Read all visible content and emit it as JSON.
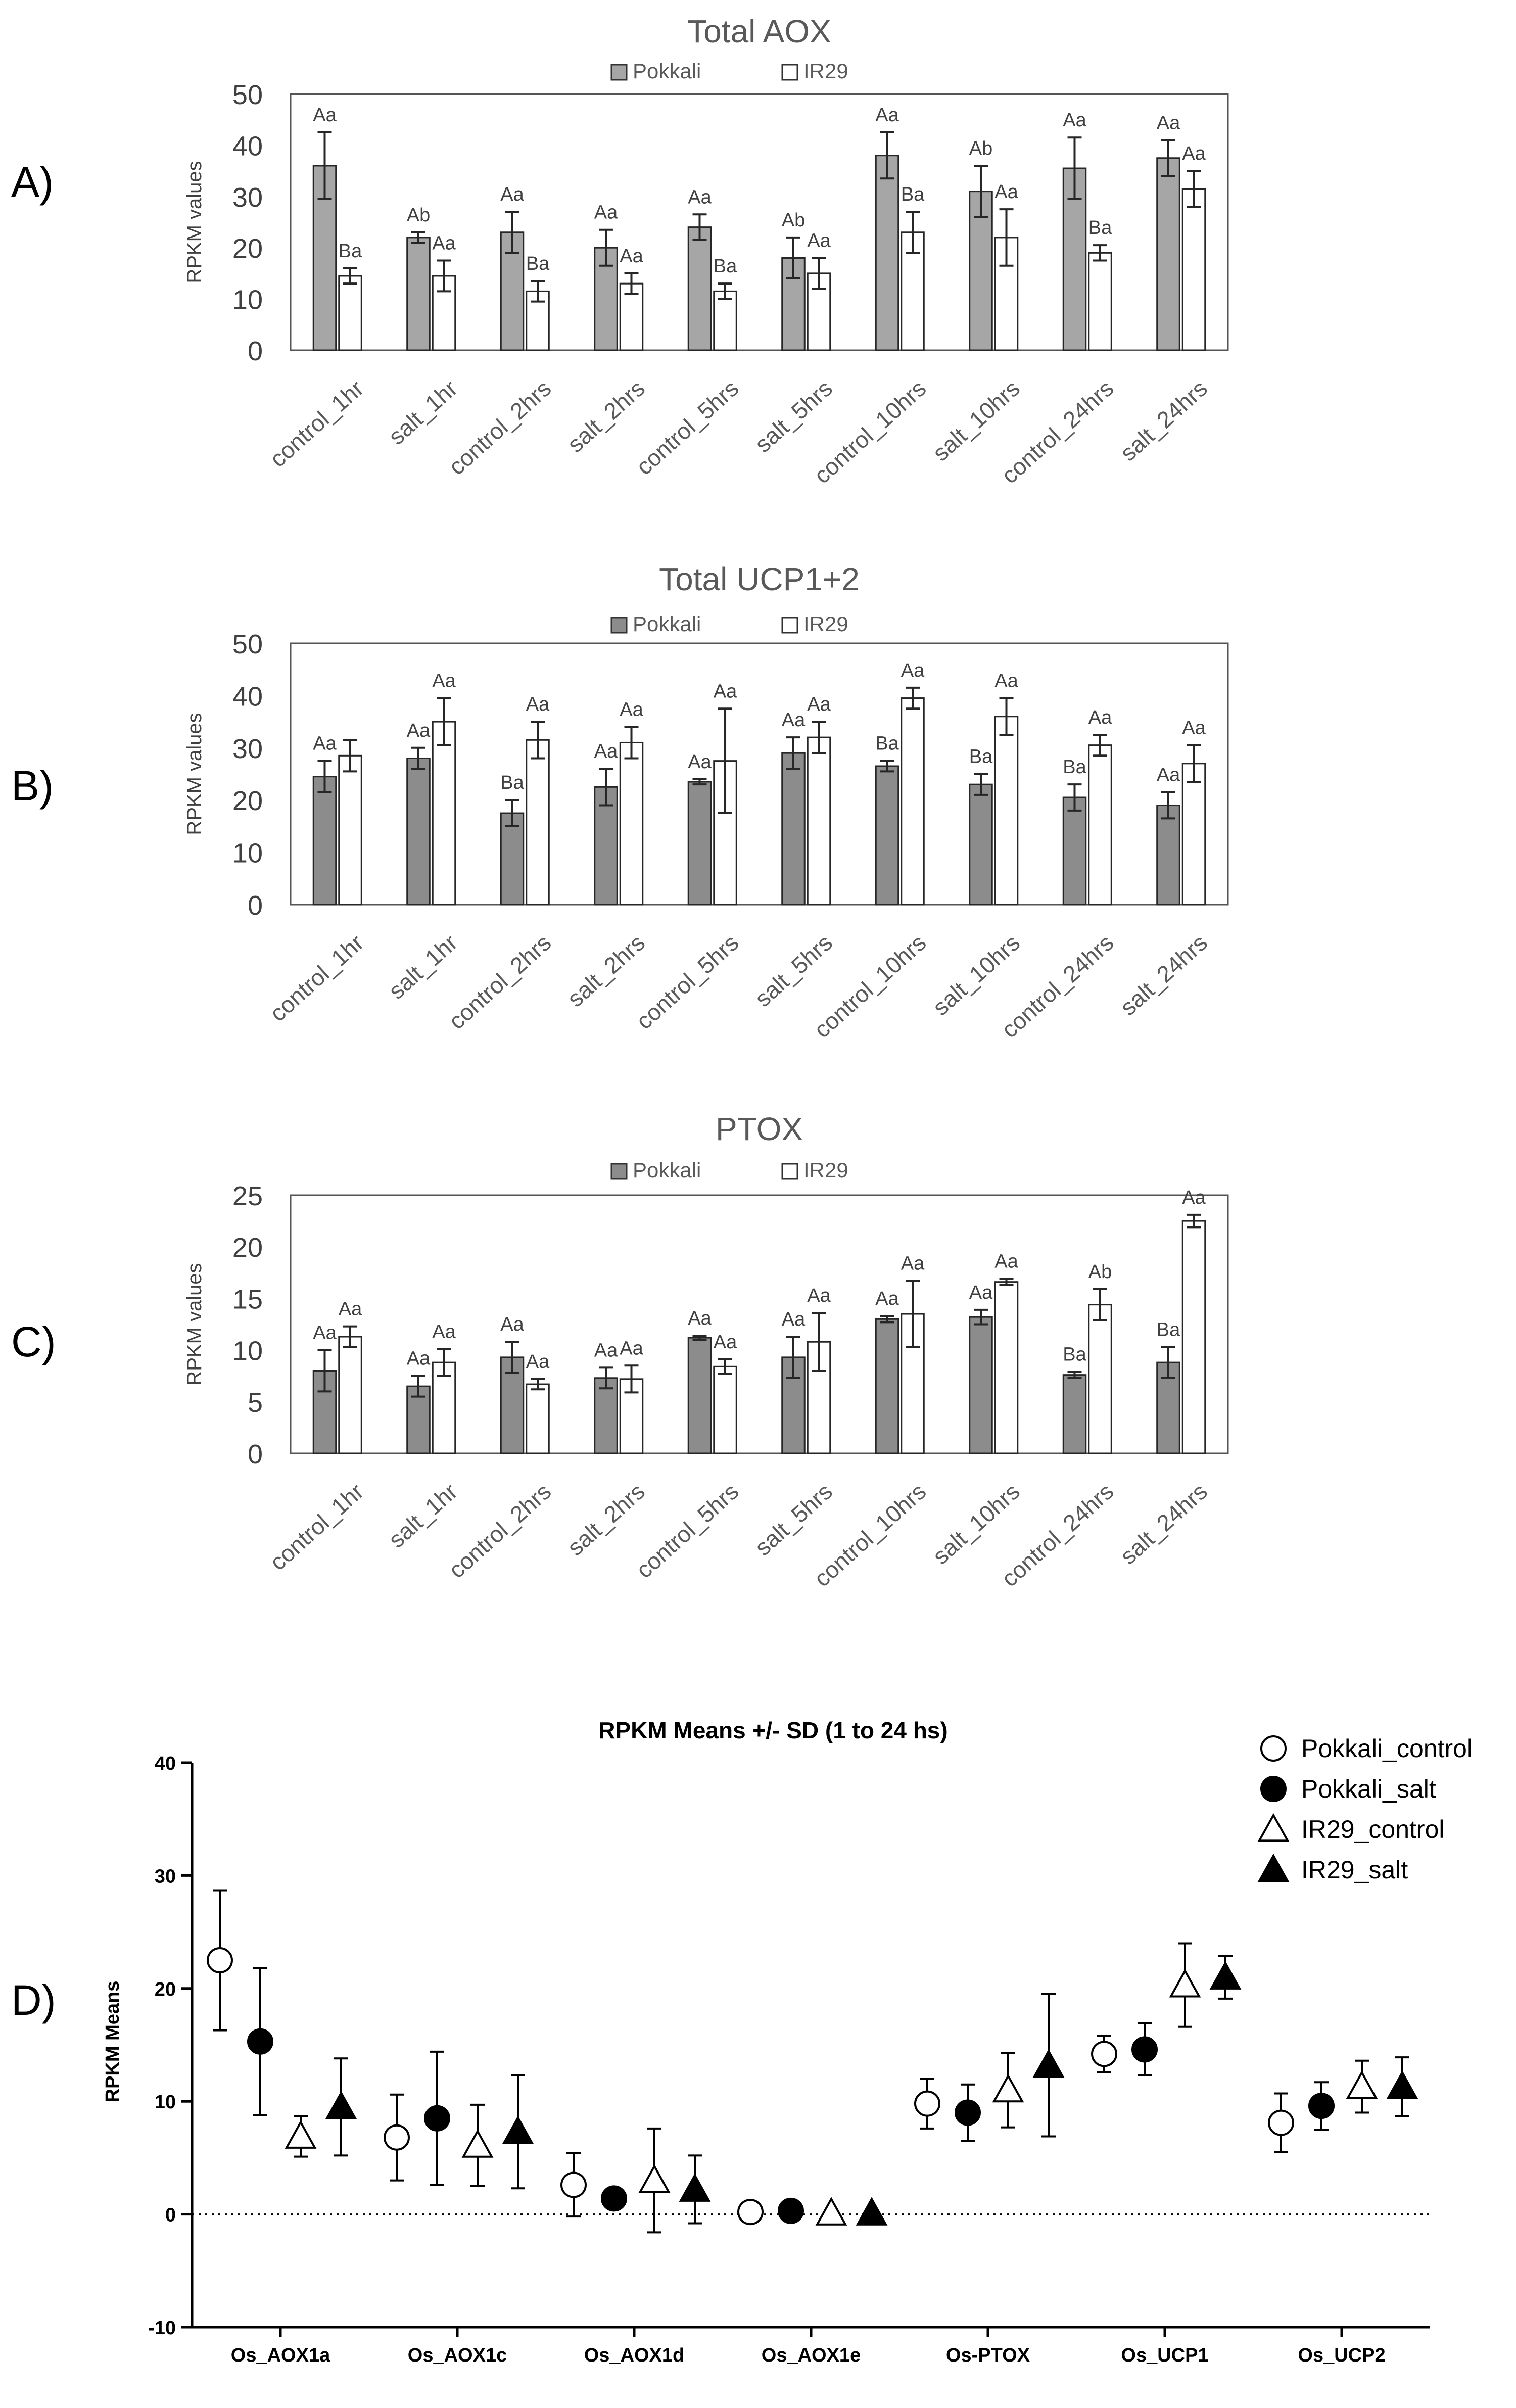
{
  "chart_data": [
    {
      "type": "bar",
      "panel": "A)",
      "title": "Total AOX",
      "ylabel": "RPKM values",
      "ylim": [
        0,
        50
      ],
      "yticks": [
        0,
        10,
        20,
        30,
        40,
        50
      ],
      "categories": [
        "control_1hr",
        "salt_1hr",
        "control_2hrs",
        "salt_2hrs",
        "control_5hrs",
        "salt_5hrs",
        "control_10hrs",
        "salt_10hrs",
        "control_24hrs",
        "salt_24hrs"
      ],
      "series": [
        {
          "name": "Pokkali",
          "color": "#a6a6a6",
          "values": [
            36,
            22,
            23,
            20,
            24,
            18,
            38,
            31,
            35.5,
            37.5
          ],
          "errors": [
            6.5,
            1,
            4,
            3.5,
            2.5,
            4,
            4.5,
            5,
            6,
            3.5
          ],
          "labels": [
            "Aa",
            "Ab",
            "Aa",
            "Aa",
            "Aa",
            "Ab",
            "Aa",
            "Ab",
            "Aa",
            "Aa"
          ]
        },
        {
          "name": "IR29",
          "color": "#ffffff",
          "values": [
            14.5,
            14.5,
            11.5,
            13,
            11.5,
            15,
            23,
            22,
            19,
            31.5
          ],
          "errors": [
            1.5,
            3,
            2,
            2,
            1.5,
            3,
            4,
            5.5,
            1.5,
            3.5
          ],
          "labels": [
            "Ba",
            "Aa",
            "Ba",
            "Aa",
            "Ba",
            "Aa",
            "Ba",
            "Aa",
            "Ba",
            "Aa"
          ]
        }
      ]
    },
    {
      "type": "bar",
      "panel": "B)",
      "title": "Total UCP1+2",
      "ylabel": "RPKM values",
      "ylim": [
        0,
        50
      ],
      "yticks": [
        0,
        10,
        20,
        30,
        40,
        50
      ],
      "categories": [
        "control_1hr",
        "salt_1hr",
        "control_2hrs",
        "salt_2hrs",
        "control_5hrs",
        "salt_5hrs",
        "control_10hrs",
        "salt_10hrs",
        "control_24hrs",
        "salt_24hrs"
      ],
      "series": [
        {
          "name": "Pokkali",
          "color": "#8c8c8c",
          "values": [
            24.5,
            28,
            17.5,
            22.5,
            23.5,
            29,
            26.5,
            23,
            20.5,
            19
          ],
          "errors": [
            3,
            2,
            2.5,
            3.5,
            0.5,
            3,
            1,
            2,
            2.5,
            2.5
          ],
          "labels": [
            "Aa",
            "Aa",
            "Ba",
            "Aa",
            "Aa",
            "Aa",
            "Ba",
            "Ba",
            "Ba",
            "Aa"
          ]
        },
        {
          "name": "IR29",
          "color": "#ffffff",
          "values": [
            28.5,
            35,
            31.5,
            31,
            27.5,
            32,
            39.5,
            36,
            30.5,
            27
          ],
          "errors": [
            3,
            4.5,
            3.5,
            3,
            10,
            3,
            2,
            3.5,
            2,
            3.5
          ],
          "labels": [
            "",
            "Aa",
            "Aa",
            "Aa",
            "Aa",
            "Aa",
            "Aa",
            "Aa",
            "Aa",
            "Aa"
          ]
        }
      ]
    },
    {
      "type": "bar",
      "panel": "C)",
      "title": "PTOX",
      "ylabel": "RPKM values",
      "ylim": [
        0,
        25
      ],
      "yticks": [
        0,
        5,
        10,
        15,
        20,
        25
      ],
      "categories": [
        "control_1hr",
        "salt_1hr",
        "control_2hrs",
        "salt_2hrs",
        "control_5hrs",
        "salt_5hrs",
        "control_10hrs",
        "salt_10hrs",
        "control_24hrs",
        "salt_24hrs"
      ],
      "series": [
        {
          "name": "Pokkali",
          "color": "#8c8c8c",
          "values": [
            8,
            6.5,
            9.3,
            7.3,
            11.2,
            9.3,
            13,
            13.2,
            7.6,
            8.8
          ],
          "errors": [
            2,
            1,
            1.5,
            1,
            0.2,
            2,
            0.3,
            0.7,
            0.3,
            1.5
          ],
          "labels": [
            "Aa",
            "Aa",
            "Aa",
            "Aa",
            "Aa",
            "Aa",
            "Aa",
            "Aa",
            "Ba",
            "Ba"
          ]
        },
        {
          "name": "IR29",
          "color": "#ffffff",
          "values": [
            11.3,
            8.8,
            6.7,
            7.2,
            8.4,
            10.8,
            13.5,
            16.6,
            14.4,
            22.5
          ],
          "errors": [
            1,
            1.3,
            0.5,
            1.3,
            0.7,
            2.8,
            3.2,
            0.3,
            1.5,
            0.6
          ],
          "labels": [
            "Aa",
            "Aa",
            "Aa",
            "Aa",
            "Aa",
            "Aa",
            "Aa",
            "Aa",
            "Ab",
            "Aa"
          ]
        }
      ]
    },
    {
      "type": "scatter",
      "panel": "D)",
      "title": "RPKM Means +/- SD (1 to 24 hs)",
      "ylabel": "RPKM Means",
      "ylim": [
        -10,
        40
      ],
      "yticks": [
        -10,
        0,
        10,
        20,
        30,
        40
      ],
      "categories": [
        "Os_AOX1a",
        "Os_AOX1c",
        "Os_AOX1d",
        "Os_AOX1e",
        "Os-PTOX",
        "Os_UCP1",
        "Os_UCP2"
      ],
      "series": [
        {
          "name": "Pokkali_control",
          "marker": "circle-open",
          "values": [
            22.5,
            6.8,
            2.6,
            0.2,
            9.8,
            14.2,
            8.1
          ],
          "errors": [
            6.2,
            3.8,
            2.8,
            0.2,
            2.2,
            1.6,
            2.6
          ]
        },
        {
          "name": "Pokkali_salt",
          "marker": "circle-filled",
          "values": [
            15.3,
            8.5,
            1.4,
            0.3,
            9,
            14.6,
            9.6
          ],
          "errors": [
            6.5,
            5.9,
            0.6,
            0.2,
            2.5,
            2.3,
            2.1
          ]
        },
        {
          "name": "IR29_control",
          "marker": "triangle-open",
          "values": [
            6.9,
            6.1,
            3,
            0.1,
            11,
            20.3,
            11.3
          ],
          "errors": [
            1.8,
            3.6,
            4.6,
            0.1,
            3.3,
            3.7,
            2.3
          ]
        },
        {
          "name": "IR29_salt",
          "marker": "triangle-filled",
          "values": [
            9.5,
            7.3,
            2.2,
            0.1,
            13.2,
            21,
            11.3
          ],
          "errors": [
            4.3,
            5,
            3,
            0.1,
            6.3,
            1.9,
            2.6
          ]
        }
      ]
    }
  ]
}
